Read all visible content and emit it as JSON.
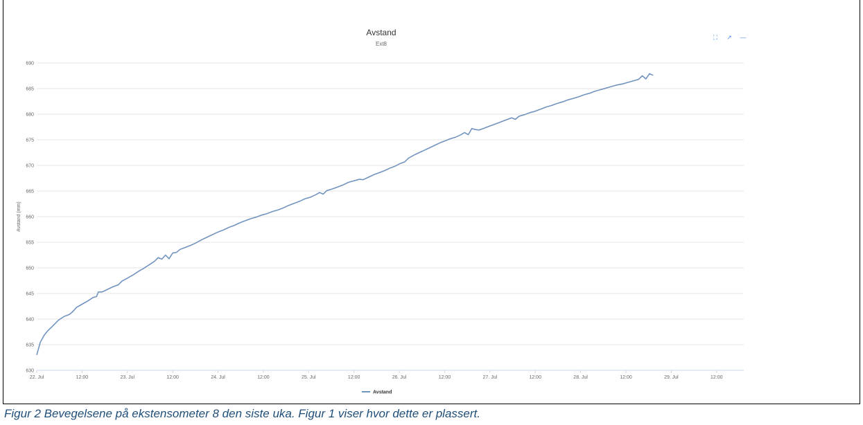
{
  "chart_data": {
    "type": "line",
    "title": "Avstand",
    "subtitle": "Ext8",
    "ylabel": "Avstand (mm)",
    "xlabel": "",
    "ylim": [
      630,
      690
    ],
    "yticks": [
      630,
      635,
      640,
      645,
      650,
      655,
      660,
      665,
      670,
      675,
      680,
      685,
      690
    ],
    "xlim": [
      0,
      7.8
    ],
    "xticks": [
      {
        "x": 0,
        "label": "22. Jul"
      },
      {
        "x": 0.5,
        "label": "12:00"
      },
      {
        "x": 1,
        "label": "23. Jul"
      },
      {
        "x": 1.5,
        "label": "12:00"
      },
      {
        "x": 2,
        "label": "24. Jul"
      },
      {
        "x": 2.5,
        "label": "12:00"
      },
      {
        "x": 3,
        "label": "25. Jul"
      },
      {
        "x": 3.5,
        "label": "12:00"
      },
      {
        "x": 4,
        "label": "26. Jul"
      },
      {
        "x": 4.5,
        "label": "12:00"
      },
      {
        "x": 5,
        "label": "27. Jul"
      },
      {
        "x": 5.5,
        "label": "12:00"
      },
      {
        "x": 6,
        "label": "28. Jul"
      },
      {
        "x": 6.5,
        "label": "12:00"
      },
      {
        "x": 7,
        "label": "29. Jul"
      },
      {
        "x": 7.5,
        "label": "12:00"
      }
    ],
    "grid": true,
    "legend_position": "bottom",
    "series": [
      {
        "name": "Avstand",
        "color": "#7193bf",
        "points": [
          [
            0.0,
            633.0
          ],
          [
            0.04,
            635.5
          ],
          [
            0.08,
            636.8
          ],
          [
            0.12,
            637.7
          ],
          [
            0.18,
            638.7
          ],
          [
            0.24,
            639.8
          ],
          [
            0.3,
            640.5
          ],
          [
            0.36,
            640.9
          ],
          [
            0.4,
            641.5
          ],
          [
            0.44,
            642.3
          ],
          [
            0.5,
            642.9
          ],
          [
            0.56,
            643.5
          ],
          [
            0.62,
            644.2
          ],
          [
            0.66,
            644.4
          ],
          [
            0.68,
            645.3
          ],
          [
            0.72,
            645.3
          ],
          [
            0.78,
            645.8
          ],
          [
            0.84,
            646.3
          ],
          [
            0.9,
            646.7
          ],
          [
            0.94,
            647.4
          ],
          [
            1.0,
            648.0
          ],
          [
            1.06,
            648.6
          ],
          [
            1.12,
            649.3
          ],
          [
            1.18,
            649.9
          ],
          [
            1.24,
            650.6
          ],
          [
            1.3,
            651.3
          ],
          [
            1.34,
            652.0
          ],
          [
            1.38,
            651.7
          ],
          [
            1.42,
            652.5
          ],
          [
            1.46,
            651.8
          ],
          [
            1.5,
            652.9
          ],
          [
            1.54,
            653.0
          ],
          [
            1.58,
            653.6
          ],
          [
            1.64,
            654.0
          ],
          [
            1.7,
            654.4
          ],
          [
            1.76,
            654.9
          ],
          [
            1.82,
            655.5
          ],
          [
            1.88,
            656.0
          ],
          [
            1.94,
            656.5
          ],
          [
            2.0,
            657.0
          ],
          [
            2.06,
            657.4
          ],
          [
            2.12,
            657.9
          ],
          [
            2.18,
            658.3
          ],
          [
            2.24,
            658.8
          ],
          [
            2.3,
            659.2
          ],
          [
            2.36,
            659.6
          ],
          [
            2.42,
            659.9
          ],
          [
            2.48,
            660.3
          ],
          [
            2.54,
            660.6
          ],
          [
            2.6,
            661.0
          ],
          [
            2.66,
            661.3
          ],
          [
            2.72,
            661.7
          ],
          [
            2.78,
            662.2
          ],
          [
            2.84,
            662.6
          ],
          [
            2.9,
            663.0
          ],
          [
            2.96,
            663.5
          ],
          [
            3.02,
            663.8
          ],
          [
            3.08,
            664.3
          ],
          [
            3.12,
            664.7
          ],
          [
            3.16,
            664.4
          ],
          [
            3.2,
            665.1
          ],
          [
            3.26,
            665.4
          ],
          [
            3.32,
            665.8
          ],
          [
            3.38,
            666.2
          ],
          [
            3.44,
            666.7
          ],
          [
            3.5,
            667.0
          ],
          [
            3.56,
            667.3
          ],
          [
            3.6,
            667.2
          ],
          [
            3.66,
            667.7
          ],
          [
            3.72,
            668.2
          ],
          [
            3.78,
            668.6
          ],
          [
            3.84,
            669.0
          ],
          [
            3.9,
            669.5
          ],
          [
            3.96,
            669.9
          ],
          [
            4.0,
            670.3
          ],
          [
            4.06,
            670.7
          ],
          [
            4.1,
            671.4
          ],
          [
            4.16,
            672.0
          ],
          [
            4.22,
            672.5
          ],
          [
            4.28,
            673.0
          ],
          [
            4.34,
            673.5
          ],
          [
            4.4,
            674.0
          ],
          [
            4.46,
            674.5
          ],
          [
            4.52,
            674.9
          ],
          [
            4.56,
            675.2
          ],
          [
            4.62,
            675.5
          ],
          [
            4.68,
            676.0
          ],
          [
            4.72,
            676.4
          ],
          [
            4.76,
            676.0
          ],
          [
            4.8,
            677.2
          ],
          [
            4.84,
            677.0
          ],
          [
            4.88,
            676.9
          ],
          [
            4.94,
            677.3
          ],
          [
            5.0,
            677.7
          ],
          [
            5.06,
            678.1
          ],
          [
            5.12,
            678.5
          ],
          [
            5.18,
            678.9
          ],
          [
            5.24,
            679.3
          ],
          [
            5.28,
            679.0
          ],
          [
            5.32,
            679.6
          ],
          [
            5.38,
            679.9
          ],
          [
            5.44,
            680.3
          ],
          [
            5.5,
            680.6
          ],
          [
            5.56,
            681.0
          ],
          [
            5.62,
            681.4
          ],
          [
            5.68,
            681.7
          ],
          [
            5.74,
            682.1
          ],
          [
            5.8,
            682.4
          ],
          [
            5.86,
            682.8
          ],
          [
            5.92,
            683.1
          ],
          [
            5.98,
            683.4
          ],
          [
            6.04,
            683.8
          ],
          [
            6.1,
            684.1
          ],
          [
            6.16,
            684.5
          ],
          [
            6.22,
            684.8
          ],
          [
            6.28,
            685.1
          ],
          [
            6.34,
            685.4
          ],
          [
            6.4,
            685.7
          ],
          [
            6.46,
            685.9
          ],
          [
            6.52,
            686.2
          ],
          [
            6.58,
            686.5
          ],
          [
            6.64,
            686.8
          ],
          [
            6.68,
            687.5
          ],
          [
            6.72,
            686.9
          ],
          [
            6.76,
            687.9
          ],
          [
            6.8,
            687.6
          ]
        ]
      }
    ]
  },
  "toolbar": {
    "expand_icon": "expand-icon",
    "popout_icon": "popout-icon",
    "collapse_icon": "collapse-icon"
  },
  "caption": "Figur 2 Bevegelsene på ekstensometer 8 den siste uka. Figur 1 viser hvor dette er plassert."
}
